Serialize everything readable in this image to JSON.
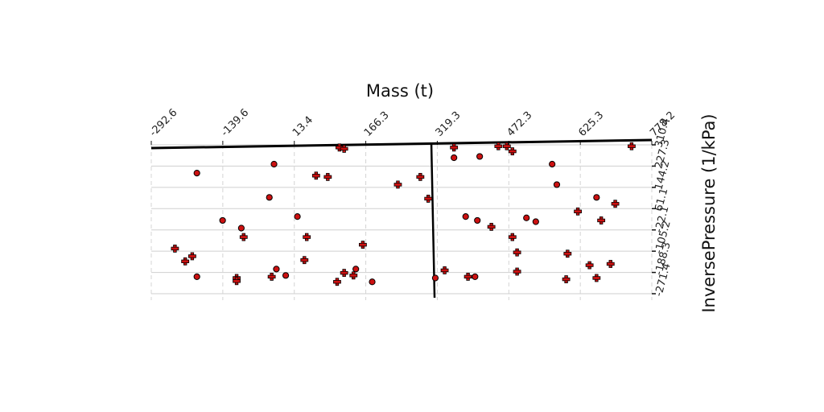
{
  "chart_data": {
    "type": "scatter",
    "title": "",
    "xlabel": "Mass (t)",
    "ylabel": "InversePressure (1/kPa)",
    "x_axis_position": "top",
    "y_axis_position": "right",
    "grid": true,
    "xlim": [
      -292.6,
      778.2
    ],
    "ylim": [
      -271.4,
      310.4
    ],
    "x_ticks": [
      "-292.6",
      "-139.6",
      "13.4",
      "166.3",
      "319.3",
      "472.3",
      "625.3",
      "778.2"
    ],
    "y_ticks": [
      "310.4",
      "227.3",
      "144.2",
      "61.1",
      "-22.1",
      "-105.2",
      "-188.3",
      "-271.4"
    ],
    "vertical_line_x": 310,
    "marker_color": "#cc1111",
    "series": [
      {
        "marker": "plus",
        "points": [
          {
            "x": 110,
            "y": 300
          },
          {
            "x": 120,
            "y": 295
          },
          {
            "x": 355,
            "y": 300
          },
          {
            "x": 450,
            "y": 305
          },
          {
            "x": 468,
            "y": 305
          },
          {
            "x": 480,
            "y": 285
          },
          {
            "x": 735,
            "y": 305
          },
          {
            "x": 60,
            "y": 190
          },
          {
            "x": 85,
            "y": 185
          },
          {
            "x": 235,
            "y": 155
          },
          {
            "x": 283,
            "y": 185
          },
          {
            "x": 300,
            "y": 100
          },
          {
            "x": 480,
            "y": -50
          },
          {
            "x": 700,
            "y": 80
          },
          {
            "x": 620,
            "y": 50
          },
          {
            "x": 670,
            "y": 15
          },
          {
            "x": 40,
            "y": -50
          },
          {
            "x": -95,
            "y": -50
          },
          {
            "x": -242,
            "y": -95
          },
          {
            "x": -205,
            "y": -125
          },
          {
            "x": -220,
            "y": -145
          },
          {
            "x": 35,
            "y": -140
          },
          {
            "x": 160,
            "y": -80
          },
          {
            "x": 435,
            "y": -10
          },
          {
            "x": 490,
            "y": -110
          },
          {
            "x": 598,
            "y": -115
          },
          {
            "x": 645,
            "y": -160
          },
          {
            "x": 690,
            "y": -155
          },
          {
            "x": 120,
            "y": -190
          },
          {
            "x": 140,
            "y": -200
          },
          {
            "x": 385,
            "y": -205
          },
          {
            "x": 490,
            "y": -185
          },
          {
            "x": 595,
            "y": -215
          },
          {
            "x": 660,
            "y": -210
          },
          {
            "x": -110,
            "y": -210
          },
          {
            "x": -110,
            "y": -222
          },
          {
            "x": -35,
            "y": -205
          },
          {
            "x": 105,
            "y": -225
          },
          {
            "x": 335,
            "y": -180
          }
        ]
      },
      {
        "marker": "circle",
        "points": [
          {
            "x": 355,
            "y": 260
          },
          {
            "x": 410,
            "y": 265
          },
          {
            "x": -30,
            "y": 235
          },
          {
            "x": 565,
            "y": 235
          },
          {
            "x": -195,
            "y": 200
          },
          {
            "x": 575,
            "y": 155
          },
          {
            "x": -40,
            "y": 105
          },
          {
            "x": 660,
            "y": 105
          },
          {
            "x": 20,
            "y": 30
          },
          {
            "x": 380,
            "y": 30
          },
          {
            "x": 405,
            "y": 15
          },
          {
            "x": 510,
            "y": 25
          },
          {
            "x": 530,
            "y": 10
          },
          {
            "x": -140,
            "y": 15
          },
          {
            "x": -100,
            "y": -15
          },
          {
            "x": -25,
            "y": -175
          },
          {
            "x": 145,
            "y": -175
          },
          {
            "x": -5,
            "y": -200
          },
          {
            "x": -195,
            "y": -205
          },
          {
            "x": 180,
            "y": -225
          },
          {
            "x": 315,
            "y": -210
          },
          {
            "x": 400,
            "y": -205
          }
        ]
      }
    ]
  }
}
